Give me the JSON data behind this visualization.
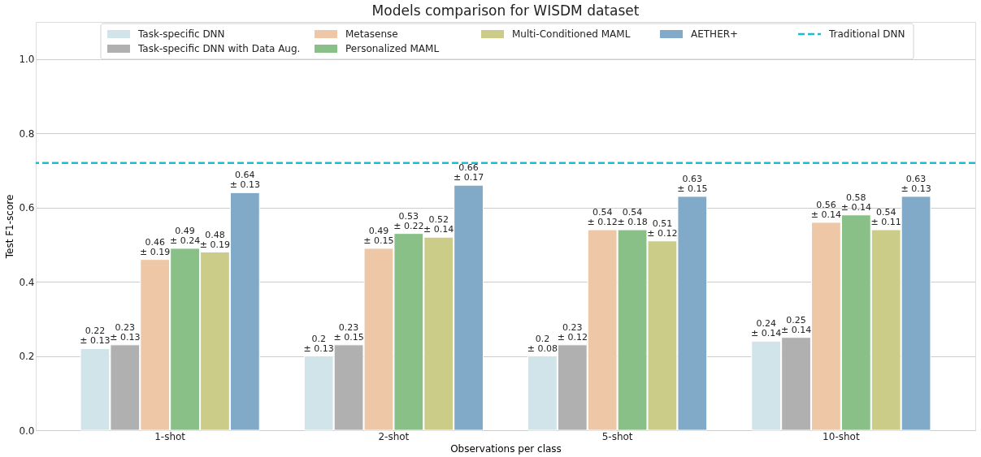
{
  "chart_data": {
    "type": "bar",
    "title": "Models comparison for WISDM dataset",
    "xlabel": "Observations per class",
    "ylabel": "Test F1-score",
    "categories": [
      "1-shot",
      "2-shot",
      "5-shot",
      "10-shot"
    ],
    "series": [
      {
        "name": "Task-specific DNN",
        "color": "#d0e4ea",
        "values": [
          0.22,
          0.2,
          0.2,
          0.24
        ],
        "value_labels": [
          "0.22\n± 0.13",
          "0.2\n± 0.13",
          "0.2\n± 0.08",
          "0.24\n± 0.14"
        ]
      },
      {
        "name": "Task-specific DNN with Data Aug.",
        "color": "#b0b0b0",
        "values": [
          0.23,
          0.23,
          0.23,
          0.25
        ],
        "value_labels": [
          "0.23\n± 0.13",
          "0.23\n± 0.15",
          "0.23\n± 0.12",
          "0.25\n± 0.14"
        ]
      },
      {
        "name": "Metasense",
        "color": "#eec8a6",
        "values": [
          0.46,
          0.49,
          0.54,
          0.56
        ],
        "value_labels": [
          "0.46\n± 0.19",
          "0.49\n± 0.15",
          "0.54\n± 0.12",
          "0.56\n± 0.14"
        ]
      },
      {
        "name": "Personalized MAML",
        "color": "#88c088",
        "values": [
          0.49,
          0.53,
          0.54,
          0.58
        ],
        "value_labels": [
          "0.49\n± 0.24",
          "0.53\n± 0.22",
          "0.54\n± 0.18",
          "0.58\n± 0.14"
        ]
      },
      {
        "name": "Multi-Conditioned MAML",
        "color": "#cbcc88",
        "values": [
          0.48,
          0.52,
          0.51,
          0.54
        ],
        "value_labels": [
          "0.48\n± 0.19",
          "0.52\n± 0.14",
          "0.51\n± 0.12",
          "0.54\n± 0.11"
        ]
      },
      {
        "name": "AETHER+",
        "color": "#80aac8",
        "values": [
          0.64,
          0.66,
          0.63,
          0.63
        ],
        "value_labels": [
          "0.64\n± 0.13",
          "0.66\n± 0.17",
          "0.63\n± 0.15",
          "0.63\n± 0.13"
        ]
      }
    ],
    "ref_lines": [
      {
        "axis": "y",
        "value": 0.72,
        "label": "Traditional DNN",
        "color": "#17becf",
        "line_style": "dashed"
      }
    ],
    "ylim": [
      0,
      1.1
    ],
    "yticks": [
      {
        "value": 0,
        "label": "0.0"
      },
      0.2,
      0.4,
      0.6,
      0.8,
      {
        "value": 1,
        "label": "1.0"
      }
    ],
    "grid": "y",
    "legend": "top"
  }
}
